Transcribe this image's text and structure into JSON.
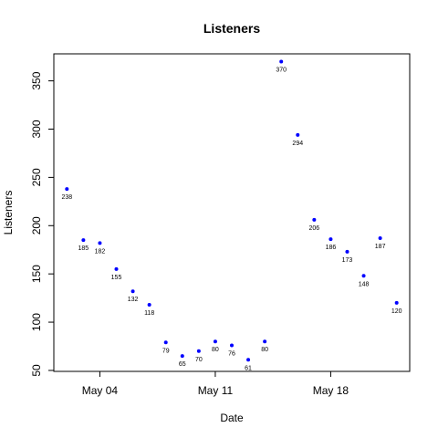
{
  "chart_data": {
    "type": "scatter",
    "title": "Listeners",
    "xlabel": "Date",
    "ylabel": "Listeners",
    "x": [
      "2020-05-02",
      "2020-05-03",
      "2020-05-04",
      "2020-05-05",
      "2020-05-06",
      "2020-05-07",
      "2020-05-08",
      "2020-05-09",
      "2020-05-10",
      "2020-05-11",
      "2020-05-12",
      "2020-05-13",
      "2020-05-14",
      "2020-05-15",
      "2020-05-16",
      "2020-05-17",
      "2020-05-18",
      "2020-05-19",
      "2020-05-20",
      "2020-05-21",
      "2020-05-22"
    ],
    "values": [
      238,
      185,
      182,
      155,
      132,
      118,
      79,
      65,
      70,
      80,
      76,
      61,
      80,
      370,
      294,
      206,
      186,
      173,
      148,
      187,
      120
    ],
    "data_labels": [
      "238",
      "185",
      "182",
      "155",
      "132",
      "118",
      "79",
      "65",
      "70",
      "80",
      "76",
      "61",
      "80",
      "370",
      "294",
      "206",
      "186",
      "173",
      "148",
      "187",
      "120"
    ],
    "xticks": [
      {
        "date": "2020-05-04",
        "label": "May 04"
      },
      {
        "date": "2020-05-11",
        "label": "May 11"
      },
      {
        "date": "2020-05-18",
        "label": "May 18"
      }
    ],
    "yticks": [
      50,
      100,
      150,
      200,
      250,
      300,
      350
    ],
    "xlim": [
      "2020-05-01T05:00",
      "2020-05-22T19:00"
    ],
    "ylim": [
      49,
      378
    ],
    "point_color": "#0000ff",
    "grid": false,
    "legend": "none"
  }
}
